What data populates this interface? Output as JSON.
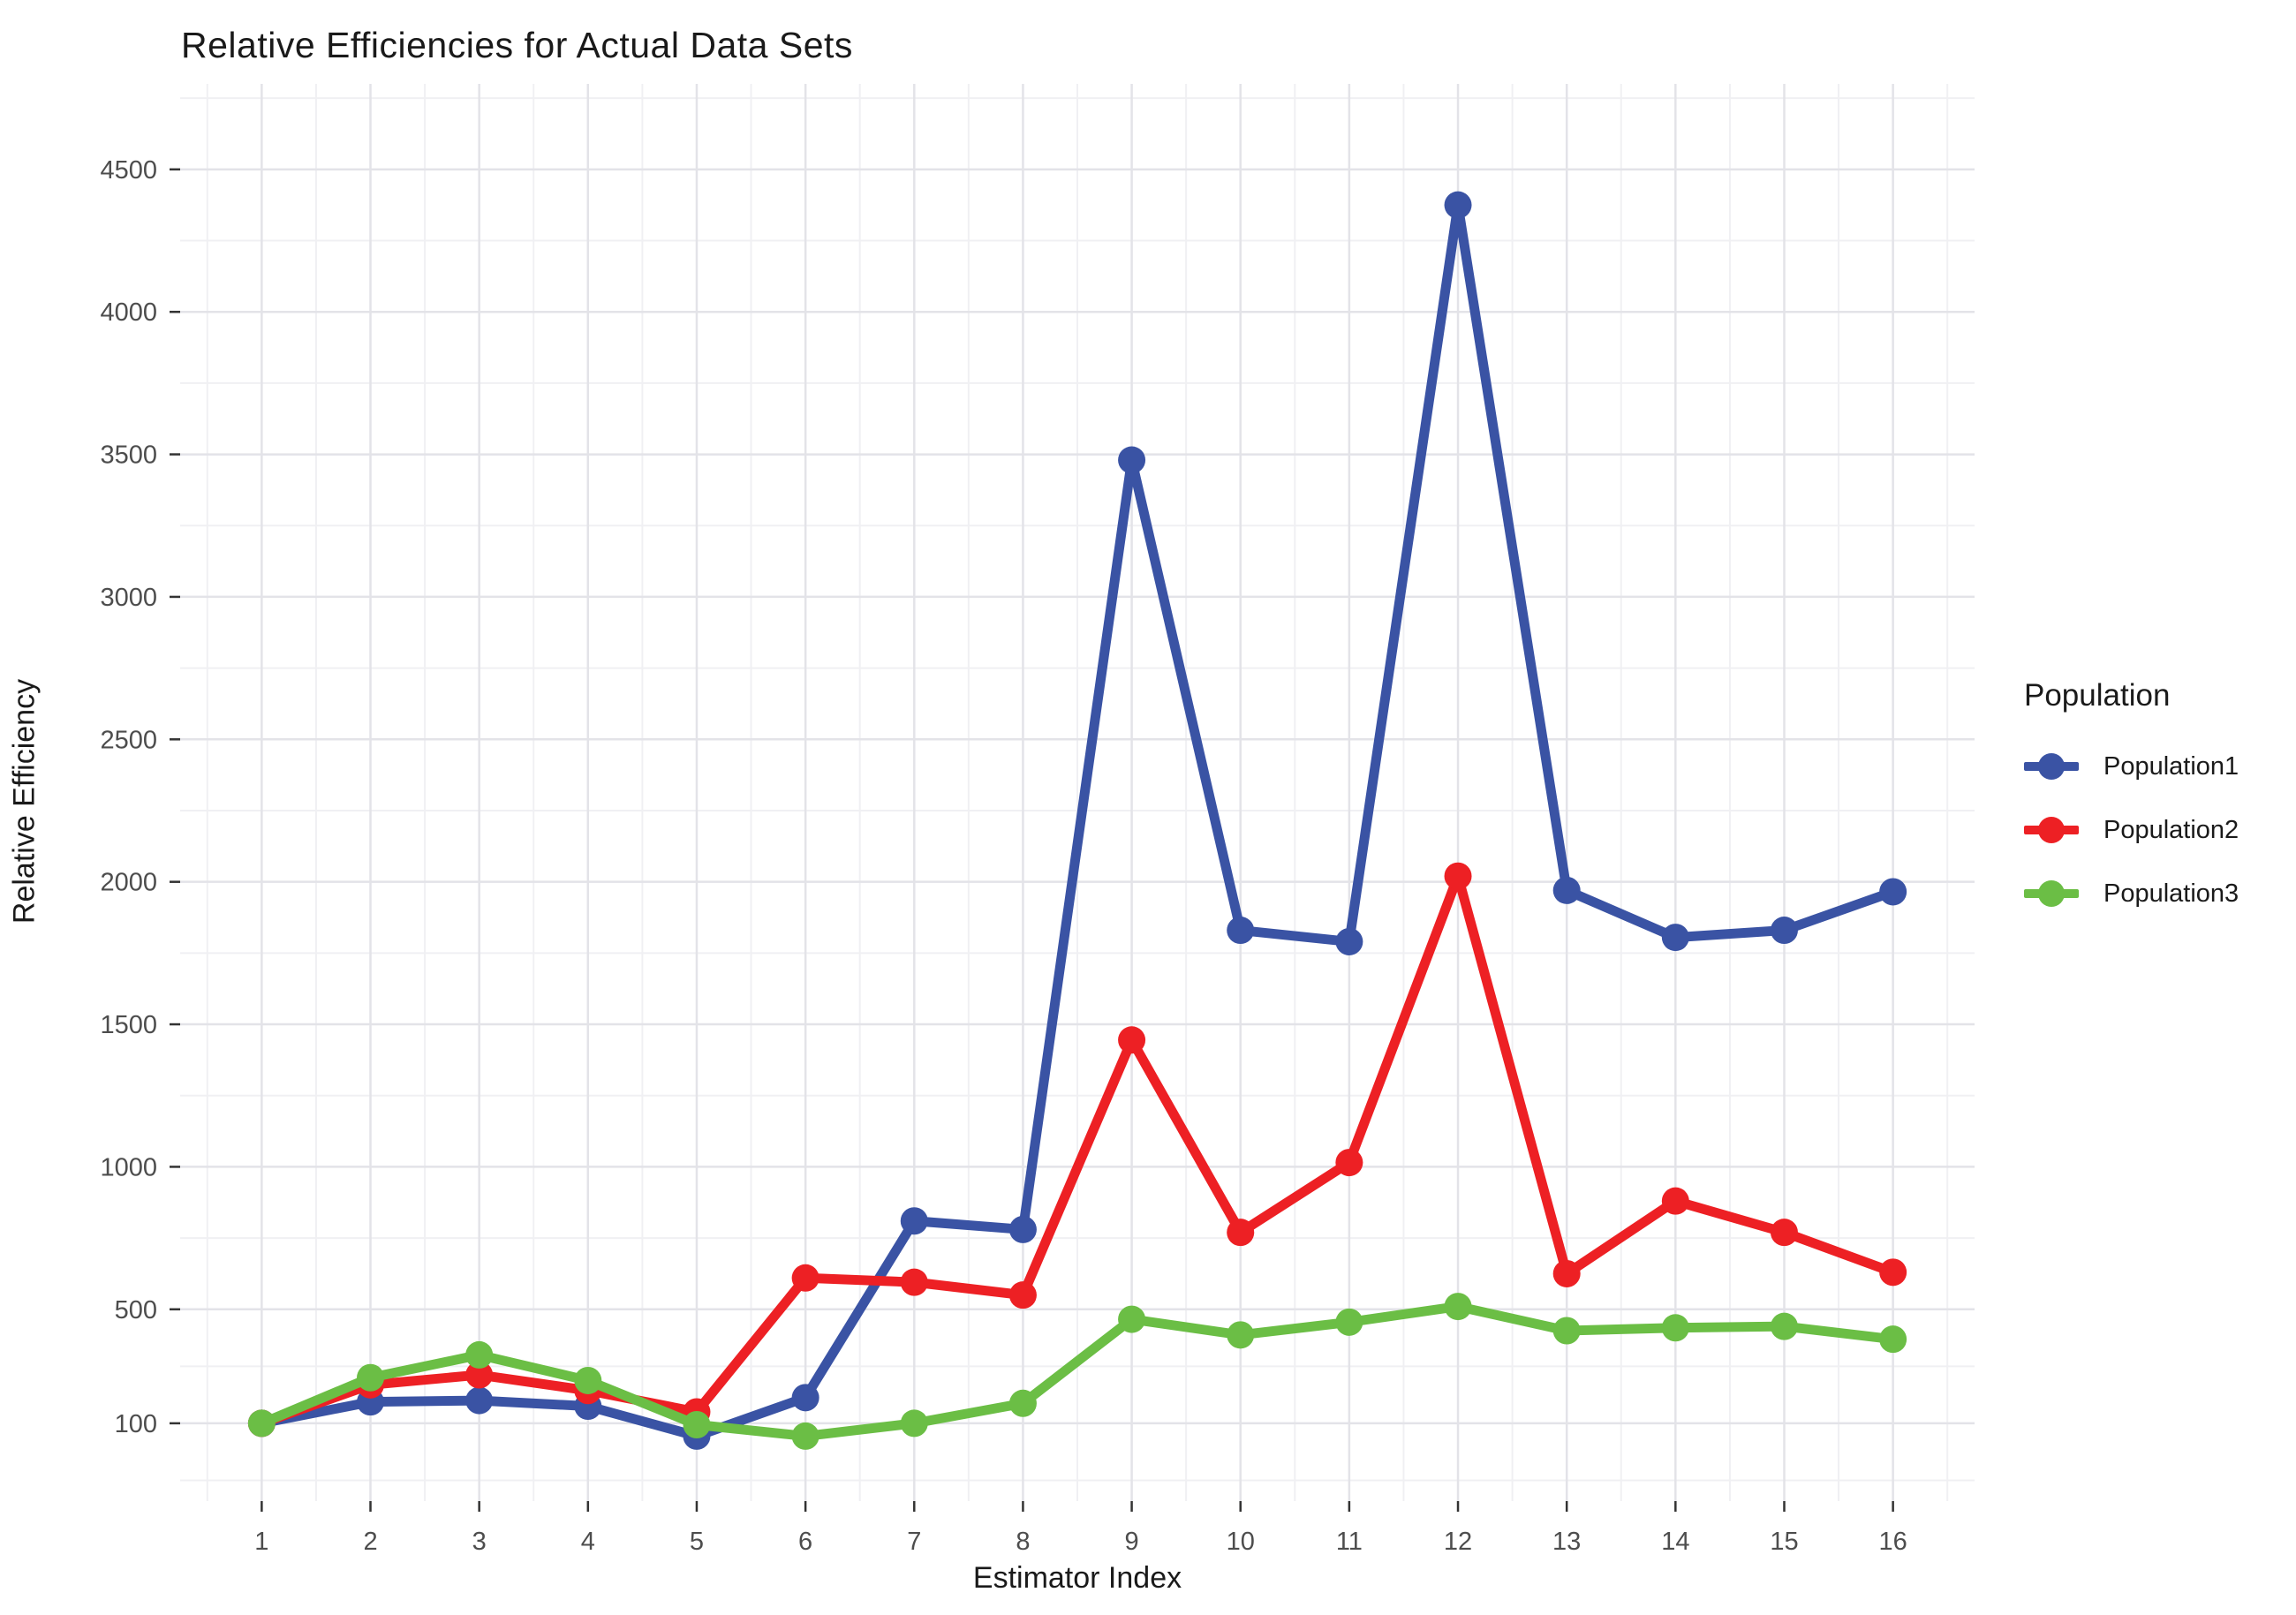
{
  "chart_data": {
    "type": "line",
    "title": "Relative Efficiencies for Actual Data Sets",
    "xlabel": "Estimator Index",
    "ylabel": "Relative Efficiency",
    "legend_title": "Population",
    "legend_position": "right",
    "grid": true,
    "x": [
      1,
      2,
      3,
      4,
      5,
      6,
      7,
      8,
      9,
      10,
      11,
      12,
      13,
      14,
      15,
      16
    ],
    "x_ticks": [
      1,
      2,
      3,
      4,
      5,
      6,
      7,
      8,
      9,
      10,
      11,
      12,
      13,
      14,
      15,
      16
    ],
    "y_ticks": [
      100,
      500,
      1000,
      1500,
      2000,
      2500,
      3000,
      3500,
      4000,
      4500
    ],
    "y_minor_ticks": [
      -100,
      300,
      750,
      1250,
      1750,
      2250,
      2750,
      3250,
      3750,
      4250,
      4750
    ],
    "x_minor_ticks": [
      0.5,
      1.5,
      2.5,
      3.5,
      4.5,
      5.5,
      6.5,
      7.5,
      8.5,
      9.5,
      10.5,
      11.5,
      12.5,
      13.5,
      14.5,
      15.5,
      16.5
    ],
    "xlim": [
      0.25,
      16.75
    ],
    "ylim": [
      -173,
      4800
    ],
    "series": [
      {
        "name": "Population1",
        "color": "#3A53A4",
        "values": [
          100,
          175,
          180,
          160,
          55,
          190,
          810,
          780,
          3480,
          1830,
          1790,
          4375,
          1970,
          1805,
          1830,
          1965
        ]
      },
      {
        "name": "Population2",
        "color": "#ED2024",
        "values": [
          100,
          235,
          270,
          215,
          140,
          610,
          595,
          550,
          1445,
          770,
          1015,
          2020,
          625,
          880,
          770,
          630
        ]
      },
      {
        "name": "Population3",
        "color": "#6BBE45",
        "values": [
          100,
          260,
          340,
          250,
          95,
          55,
          100,
          170,
          465,
          410,
          455,
          510,
          425,
          435,
          440,
          395
        ]
      }
    ],
    "colors": {
      "grid_major": "#e3e3e8",
      "grid_minor": "#f0f0f3",
      "tick_mark": "#333333",
      "tick_label": "#4d4d4d"
    }
  }
}
